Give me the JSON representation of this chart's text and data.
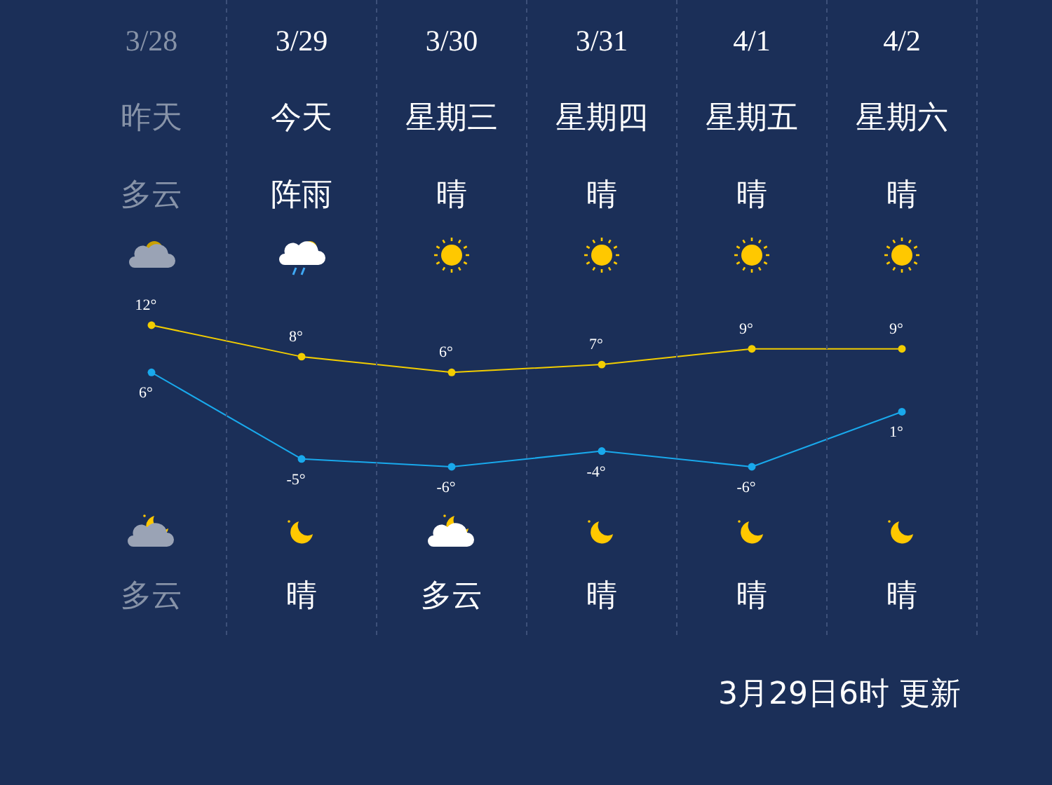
{
  "chart_data": {
    "type": "line",
    "categories": [
      "3/28",
      "3/29",
      "3/30",
      "3/31",
      "4/1",
      "4/2"
    ],
    "series": [
      {
        "color": "#f2cd00",
        "values": [
          12,
          8,
          6,
          7,
          9,
          9
        ],
        "value_labels": [
          "12°",
          "8°",
          "6°",
          "7°",
          "9°",
          "9°"
        ]
      },
      {
        "color": "#19a9ec",
        "values": [
          6,
          -5,
          -6,
          -4,
          -6,
          1
        ],
        "value_labels": [
          "6°",
          "-5°",
          "-6°",
          "-4°",
          "-6°",
          "1°"
        ]
      }
    ],
    "marker": "circle",
    "line_style": "solid",
    "annotations": [
      "昨天",
      "今天",
      "星期三",
      "星期四",
      "星期五",
      "星期六",
      "多云",
      "阵雨",
      "晴",
      "晴",
      "晴",
      "晴",
      "多云",
      "晴",
      "多云",
      "晴",
      "晴",
      "晴",
      "3月29日6时 更新"
    ]
  }
}
